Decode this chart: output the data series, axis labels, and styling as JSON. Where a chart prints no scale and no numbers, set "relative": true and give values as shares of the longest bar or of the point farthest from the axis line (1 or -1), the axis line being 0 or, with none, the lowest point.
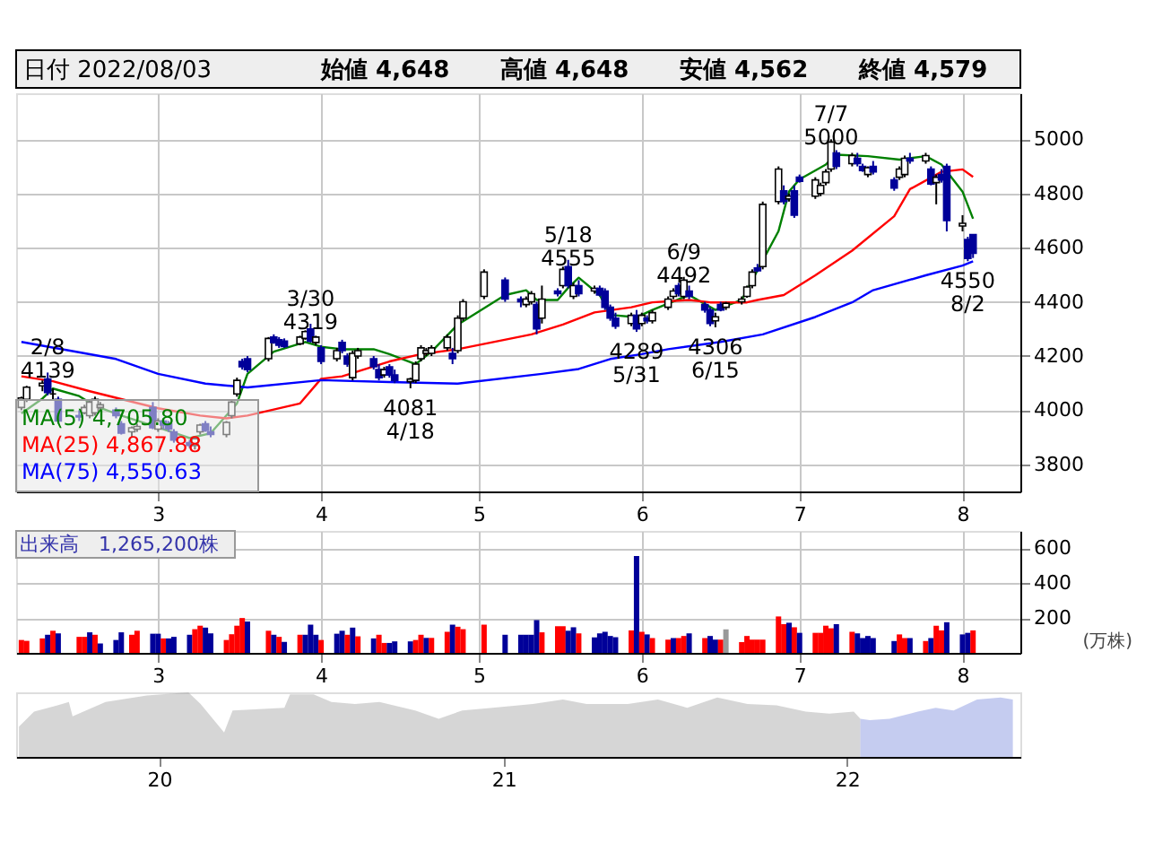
{
  "chart_data": [
    {
      "type": "candlestick",
      "title": "日付 2022/08/03",
      "x": [
        "2022-02-03",
        "2022-02-04",
        "2022-02-07",
        "2022-02-08",
        "2022-02-09",
        "2022-02-10",
        "2022-02-14",
        "2022-02-15",
        "2022-02-16",
        "2022-02-17",
        "2022-02-18",
        "2022-02-21",
        "2022-02-22",
        "2022-02-24",
        "2022-02-25",
        "2022-02-28",
        "2022-03-01",
        "2022-03-02",
        "2022-03-03",
        "2022-03-04",
        "2022-03-07",
        "2022-03-08",
        "2022-03-09",
        "2022-03-10",
        "2022-03-11",
        "2022-03-14",
        "2022-03-15",
        "2022-03-16",
        "2022-03-17",
        "2022-03-18",
        "2022-03-22",
        "2022-03-23",
        "2022-03-24",
        "2022-03-25",
        "2022-03-28",
        "2022-03-29",
        "2022-03-30",
        "2022-03-31",
        "2022-04-01",
        "2022-04-04",
        "2022-04-05",
        "2022-04-06",
        "2022-04-07",
        "2022-04-08",
        "2022-04-11",
        "2022-04-12",
        "2022-04-13",
        "2022-04-14",
        "2022-04-15",
        "2022-04-18",
        "2022-04-19",
        "2022-04-20",
        "2022-04-21",
        "2022-04-22",
        "2022-04-25",
        "2022-04-26",
        "2022-04-27",
        "2022-04-28",
        "2022-05-02",
        "2022-05-06",
        "2022-05-09",
        "2022-05-10",
        "2022-05-11",
        "2022-05-12",
        "2022-05-13",
        "2022-05-16",
        "2022-05-17",
        "2022-05-18",
        "2022-05-19",
        "2022-05-20",
        "2022-05-23",
        "2022-05-24",
        "2022-05-25",
        "2022-05-26",
        "2022-05-27",
        "2022-05-30",
        "2022-05-31",
        "2022-06-01",
        "2022-06-02",
        "2022-06-03",
        "2022-06-06",
        "2022-06-07",
        "2022-06-08",
        "2022-06-09",
        "2022-06-10",
        "2022-06-13",
        "2022-06-14",
        "2022-06-15",
        "2022-06-16",
        "2022-06-17",
        "2022-06-20",
        "2022-06-21",
        "2022-06-22",
        "2022-06-23",
        "2022-06-24",
        "2022-06-27",
        "2022-06-28",
        "2022-06-29",
        "2022-06-30",
        "2022-07-01",
        "2022-07-04",
        "2022-07-05",
        "2022-07-06",
        "2022-07-07",
        "2022-07-08",
        "2022-07-11",
        "2022-07-12",
        "2022-07-13",
        "2022-07-14",
        "2022-07-15",
        "2022-07-19",
        "2022-07-20",
        "2022-07-21",
        "2022-07-22",
        "2022-07-25",
        "2022-07-26",
        "2022-07-27",
        "2022-07-28",
        "2022-07-29",
        "2022-08-01",
        "2022-08-02",
        "2022-08-03"
      ],
      "ohlc": [
        [
          4010,
          4050,
          4000,
          4045
        ],
        [
          4040,
          4090,
          4030,
          4085
        ],
        [
          4090,
          4110,
          4070,
          4100
        ],
        [
          4115,
          4139,
          4055,
          4065
        ],
        [
          4060,
          4080,
          4040,
          4060
        ],
        [
          4040,
          4050,
          3950,
          3960
        ],
        [
          3980,
          4000,
          3960,
          3975
        ],
        [
          3990,
          4020,
          3985,
          4010
        ],
        [
          3980,
          4040,
          3970,
          4030
        ],
        [
          3990,
          4050,
          3980,
          4040
        ],
        [
          4010,
          4030,
          4000,
          4020
        ],
        [
          4000,
          4010,
          3970,
          3980
        ],
        [
          3950,
          3960,
          3910,
          3915
        ],
        [
          3920,
          3940,
          3900,
          3935
        ],
        [
          3930,
          3950,
          3920,
          3940
        ],
        [
          4010,
          4030,
          3930,
          3935
        ],
        [
          3930,
          3970,
          3920,
          3960
        ],
        [
          3960,
          3970,
          3930,
          3945
        ],
        [
          3950,
          3960,
          3920,
          3930
        ],
        [
          3920,
          3930,
          3880,
          3890
        ],
        [
          3880,
          3890,
          3860,
          3870
        ],
        [
          3870,
          3900,
          3855,
          3895
        ],
        [
          3920,
          3950,
          3910,
          3945
        ],
        [
          3950,
          3960,
          3920,
          3925
        ],
        [
          3920,
          3940,
          3900,
          3910
        ],
        [
          3910,
          3960,
          3900,
          3955
        ],
        [
          3980,
          4040,
          3970,
          4030
        ],
        [
          4060,
          4120,
          4050,
          4110
        ],
        [
          4180,
          4190,
          4150,
          4160
        ],
        [
          4190,
          4200,
          4140,
          4150
        ],
        [
          4190,
          4270,
          4180,
          4265
        ],
        [
          4270,
          4280,
          4245,
          4250
        ],
        [
          4260,
          4270,
          4230,
          4240
        ],
        [
          4255,
          4265,
          4230,
          4235
        ],
        [
          4245,
          4275,
          4240,
          4270
        ],
        [
          4265,
          4295,
          4260,
          4290
        ],
        [
          4300,
          4319,
          4250,
          4255
        ],
        [
          4250,
          4275,
          4240,
          4270
        ],
        [
          4230,
          4240,
          4170,
          4180
        ],
        [
          4190,
          4230,
          4180,
          4220
        ],
        [
          4250,
          4260,
          4210,
          4220
        ],
        [
          4200,
          4210,
          4160,
          4170
        ],
        [
          4120,
          4220,
          4110,
          4210
        ],
        [
          4200,
          4230,
          4190,
          4220
        ],
        [
          4190,
          4200,
          4150,
          4160
        ],
        [
          4150,
          4170,
          4110,
          4120
        ],
        [
          4130,
          4160,
          4120,
          4150
        ],
        [
          4160,
          4170,
          4120,
          4130
        ],
        [
          4130,
          4150,
          4100,
          4110
        ],
        [
          4105,
          4120,
          4081,
          4115
        ],
        [
          4110,
          4180,
          4100,
          4170
        ],
        [
          4190,
          4240,
          4180,
          4230
        ],
        [
          4210,
          4230,
          4200,
          4220
        ],
        [
          4210,
          4240,
          4200,
          4230
        ],
        [
          4230,
          4280,
          4220,
          4270
        ],
        [
          4210,
          4230,
          4170,
          4190
        ],
        [
          4220,
          4350,
          4210,
          4340
        ],
        [
          4340,
          4410,
          4330,
          4400
        ],
        [
          4420,
          4520,
          4410,
          4510
        ],
        [
          4480,
          4490,
          4400,
          4410
        ],
        [
          4410,
          4420,
          4380,
          4400
        ],
        [
          4390,
          4420,
          4380,
          4410
        ],
        [
          4400,
          4440,
          4390,
          4430
        ],
        [
          4390,
          4400,
          4280,
          4300
        ],
        [
          4340,
          4460,
          4320,
          4410
        ],
        [
          4440,
          4450,
          4420,
          4430
        ],
        [
          4460,
          4530,
          4450,
          4520
        ],
        [
          4530,
          4555,
          4450,
          4460
        ],
        [
          4420,
          4470,
          4410,
          4460
        ],
        [
          4460,
          4480,
          4420,
          4430
        ],
        [
          4440,
          4460,
          4430,
          4450
        ],
        [
          4450,
          4460,
          4420,
          4425
        ],
        [
          4440,
          4450,
          4370,
          4380
        ],
        [
          4380,
          4390,
          4330,
          4340
        ],
        [
          4340,
          4360,
          4300,
          4310
        ],
        [
          4320,
          4360,
          4310,
          4350
        ],
        [
          4350,
          4370,
          4289,
          4300
        ],
        [
          4320,
          4360,
          4310,
          4350
        ],
        [
          4340,
          4350,
          4320,
          4330
        ],
        [
          4330,
          4370,
          4320,
          4360
        ],
        [
          4380,
          4420,
          4370,
          4410
        ],
        [
          4420,
          4450,
          4410,
          4440
        ],
        [
          4460,
          4470,
          4420,
          4430
        ],
        [
          4420,
          4492,
          4410,
          4480
        ],
        [
          4440,
          4460,
          4410,
          4420
        ],
        [
          4390,
          4400,
          4360,
          4370
        ],
        [
          4370,
          4380,
          4310,
          4320
        ],
        [
          4330,
          4360,
          4306,
          4345
        ],
        [
          4390,
          4400,
          4365,
          4370
        ],
        [
          4380,
          4400,
          4370,
          4395
        ],
        [
          4400,
          4420,
          4390,
          4410
        ],
        [
          4420,
          4460,
          4415,
          4455
        ],
        [
          4460,
          4520,
          4450,
          4510
        ],
        [
          4525,
          4540,
          4510,
          4515
        ],
        [
          4530,
          4770,
          4520,
          4760
        ],
        [
          4770,
          4900,
          4760,
          4890
        ],
        [
          4810,
          4830,
          4760,
          4770
        ],
        [
          4780,
          4800,
          4770,
          4790
        ],
        [
          4810,
          4830,
          4710,
          4720
        ],
        [
          4860,
          4870,
          4840,
          4845
        ],
        [
          4790,
          4860,
          4780,
          4850
        ],
        [
          4800,
          4840,
          4790,
          4830
        ],
        [
          4840,
          4890,
          4830,
          4880
        ],
        [
          4890,
          5000,
          4880,
          4990
        ],
        [
          4950,
          4960,
          4890,
          4900
        ],
        [
          4910,
          4950,
          4900,
          4940
        ],
        [
          4930,
          4950,
          4900,
          4910
        ],
        [
          4900,
          4910,
          4880,
          4885
        ],
        [
          4870,
          4900,
          4860,
          4895
        ],
        [
          4900,
          4920,
          4870,
          4880
        ],
        [
          4850,
          4860,
          4810,
          4820
        ],
        [
          4860,
          4900,
          4850,
          4890
        ],
        [
          4870,
          4940,
          4860,
          4930
        ],
        [
          4930,
          4950,
          4910,
          4920
        ],
        [
          4920,
          4950,
          4910,
          4940
        ],
        [
          4890,
          4900,
          4830,
          4835
        ],
        [
          4840,
          4870,
          4760,
          4860
        ],
        [
          4870,
          4890,
          4840,
          4850
        ],
        [
          4900,
          4910,
          4660,
          4700
        ],
        [
          4680,
          4720,
          4660,
          4690
        ],
        [
          4630,
          4640,
          4550,
          4560
        ],
        [
          4648,
          4648,
          4562,
          4579
        ]
      ],
      "series": [
        {
          "name": "MA(5) 4,705.80",
          "type": "line",
          "color": "#008000",
          "x": [
            "2022-02-03",
            "2022-02-07",
            "2022-02-09",
            "2022-02-14",
            "2022-02-17",
            "2022-02-22",
            "2022-02-28",
            "2022-03-07",
            "2022-03-11",
            "2022-03-16",
            "2022-03-18",
            "2022-03-23",
            "2022-03-29",
            "2022-04-01",
            "2022-04-05",
            "2022-04-11",
            "2022-04-14",
            "2022-04-19",
            "2022-04-22",
            "2022-04-27",
            "2022-05-06",
            "2022-05-10",
            "2022-05-12",
            "2022-05-16",
            "2022-05-18",
            "2022-05-20",
            "2022-05-24",
            "2022-05-26",
            "2022-05-31",
            "2022-06-03",
            "2022-06-10",
            "2022-06-15",
            "2022-06-20",
            "2022-06-22",
            "2022-06-27",
            "2022-06-29",
            "2022-07-01",
            "2022-07-06",
            "2022-07-08",
            "2022-07-14",
            "2022-07-20",
            "2022-07-25",
            "2022-07-28",
            "2022-08-01",
            "2022-08-03"
          ],
          "values": [
            3988,
            4043,
            4080,
            4052,
            4016,
            3980,
            3943,
            3897,
            3915,
            4025,
            4134,
            4216,
            4252,
            4234,
            4225,
            4225,
            4207,
            4170,
            4216,
            4316,
            4425,
            4443,
            4407,
            4407,
            4452,
            4489,
            4425,
            4352,
            4343,
            4370,
            4425,
            4370,
            4407,
            4480,
            4661,
            4807,
            4852,
            4907,
            4943,
            4938,
            4925,
            4938,
            4907,
            4807,
            4707
          ]
        },
        {
          "name": "MA(25) 4,867.88",
          "type": "line",
          "color": "#ff0000",
          "x": [
            "2022-02-03",
            "2022-02-09",
            "2022-02-16",
            "2022-03-01",
            "2022-03-09",
            "2022-03-14",
            "2022-03-18",
            "2022-03-28",
            "2022-04-01",
            "2022-04-05",
            "2022-04-14",
            "2022-04-20",
            "2022-04-27",
            "2022-05-11",
            "2022-05-17",
            "2022-05-23",
            "2022-05-30",
            "2022-06-03",
            "2022-06-10",
            "2022-06-14",
            "2022-06-21",
            "2022-06-23",
            "2022-06-28",
            "2022-07-04",
            "2022-07-11",
            "2022-07-19",
            "2022-07-22",
            "2022-07-28",
            "2022-08-01",
            "2022-08-03"
          ],
          "values": [
            4125,
            4107,
            4070,
            4007,
            3980,
            3970,
            3980,
            4025,
            4116,
            4125,
            4180,
            4207,
            4225,
            4280,
            4316,
            4361,
            4380,
            4398,
            4407,
            4398,
            4398,
            4407,
            4425,
            4498,
            4589,
            4716,
            4816,
            4880,
            4889,
            4861
          ]
        },
        {
          "name": "MA(75) 4,550.63",
          "type": "line",
          "color": "#0000ff",
          "x": [
            "2022-02-03",
            "2022-02-21",
            "2022-03-01",
            "2022-03-10",
            "2022-03-18",
            "2022-04-01",
            "2022-04-14",
            "2022-04-27",
            "2022-05-13",
            "2022-05-20",
            "2022-05-26",
            "2022-06-01",
            "2022-06-06",
            "2022-06-16",
            "2022-06-24",
            "2022-07-04",
            "2022-07-11",
            "2022-07-15",
            "2022-07-25",
            "2022-08-01",
            "2022-08-03"
          ],
          "values": [
            4252,
            4189,
            4134,
            4098,
            4084,
            4111,
            4104,
            4098,
            4134,
            4152,
            4189,
            4207,
            4225,
            4252,
            4280,
            4344,
            4398,
            4443,
            4498,
            4534,
            4550
          ]
        }
      ],
      "xlim": [
        "2022-02-02",
        "2022-08-12"
      ],
      "xticks": [
        {
          "value": "2022-03-01",
          "label": "3"
        },
        {
          "value": "2022-04-01",
          "label": "4"
        },
        {
          "value": "2022-05-01",
          "label": "5"
        },
        {
          "value": "2022-06-01",
          "label": "6"
        },
        {
          "value": "2022-07-01",
          "label": "7"
        },
        {
          "value": "2022-08-01",
          "label": "8"
        }
      ],
      "ylim": [
        3700,
        5170
      ],
      "yticks": [
        3800,
        4000,
        4200,
        4400,
        4600,
        4800,
        5000
      ],
      "grid": true,
      "legend": "bottom left",
      "annotations": [
        "始値 4,648",
        "高値 4,648",
        "安値 4,562",
        "終値 4,579",
        {
          "text": "2/8\n4139",
          "x": "2022-02-08",
          "y": 4139
        },
        {
          "text": "3/30\n4319",
          "x": "2022-03-30",
          "y": 4319
        },
        {
          "text": "4081\n4/18",
          "x": "2022-04-18",
          "y": 4081
        },
        {
          "text": "5/18\n4555",
          "x": "2022-05-18",
          "y": 4555
        },
        {
          "text": "4289\n5/31",
          "x": "2022-05-31",
          "y": 4289
        },
        {
          "text": "6/9\n4492",
          "x": "2022-06-09",
          "y": 4492
        },
        {
          "text": "4306\n6/15",
          "x": "2022-06-15",
          "y": 4306
        },
        {
          "text": "7/7\n5000",
          "x": "2022-07-07",
          "y": 5000
        },
        {
          "text": "4550\n8/2",
          "x": "2022-08-02",
          "y": 4550
        }
      ]
    },
    {
      "type": "bar",
      "ylabel": "(万株)",
      "x": [
        "2022-02-03",
        "2022-02-04",
        "2022-02-07",
        "2022-02-08",
        "2022-02-09",
        "2022-02-10",
        "2022-02-14",
        "2022-02-15",
        "2022-02-16",
        "2022-02-17",
        "2022-02-18",
        "2022-02-21",
        "2022-02-22",
        "2022-02-24",
        "2022-02-25",
        "2022-02-28",
        "2022-03-01",
        "2022-03-02",
        "2022-03-03",
        "2022-03-04",
        "2022-03-07",
        "2022-03-08",
        "2022-03-09",
        "2022-03-10",
        "2022-03-11",
        "2022-03-14",
        "2022-03-15",
        "2022-03-16",
        "2022-03-17",
        "2022-03-18",
        "2022-03-22",
        "2022-03-23",
        "2022-03-24",
        "2022-03-25",
        "2022-03-28",
        "2022-03-29",
        "2022-03-30",
        "2022-03-31",
        "2022-04-01",
        "2022-04-04",
        "2022-04-05",
        "2022-04-06",
        "2022-04-07",
        "2022-04-08",
        "2022-04-11",
        "2022-04-12",
        "2022-04-13",
        "2022-04-14",
        "2022-04-15",
        "2022-04-18",
        "2022-04-19",
        "2022-04-20",
        "2022-04-21",
        "2022-04-22",
        "2022-04-25",
        "2022-04-26",
        "2022-04-27",
        "2022-04-28",
        "2022-05-02",
        "2022-05-06",
        "2022-05-09",
        "2022-05-10",
        "2022-05-11",
        "2022-05-12",
        "2022-05-13",
        "2022-05-16",
        "2022-05-17",
        "2022-05-18",
        "2022-05-19",
        "2022-05-20",
        "2022-05-23",
        "2022-05-24",
        "2022-05-25",
        "2022-05-26",
        "2022-05-27",
        "2022-05-30",
        "2022-05-31",
        "2022-06-01",
        "2022-06-02",
        "2022-06-03",
        "2022-06-06",
        "2022-06-07",
        "2022-06-08",
        "2022-06-09",
        "2022-06-10",
        "2022-06-13",
        "2022-06-14",
        "2022-06-15",
        "2022-06-16",
        "2022-06-17",
        "2022-06-20",
        "2022-06-21",
        "2022-06-22",
        "2022-06-23",
        "2022-06-24",
        "2022-06-27",
        "2022-06-28",
        "2022-06-29",
        "2022-06-30",
        "2022-07-01",
        "2022-07-04",
        "2022-07-05",
        "2022-07-06",
        "2022-07-07",
        "2022-07-08",
        "2022-07-11",
        "2022-07-12",
        "2022-07-13",
        "2022-07-14",
        "2022-07-15",
        "2022-07-19",
        "2022-07-20",
        "2022-07-21",
        "2022-07-22",
        "2022-07-25",
        "2022-07-26",
        "2022-07-27",
        "2022-07-28",
        "2022-07-29",
        "2022-08-01",
        "2022-08-02",
        "2022-08-03"
      ],
      "values": [
        74,
        69,
        83,
        104,
        127,
        112,
        92,
        92,
        118,
        104,
        54,
        74,
        118,
        104,
        127,
        110,
        110,
        83,
        83,
        92,
        104,
        136,
        156,
        145,
        112,
        74,
        107,
        156,
        200,
        180,
        127,
        104,
        92,
        63,
        104,
        104,
        162,
        104,
        74,
        110,
        127,
        104,
        145,
        95,
        83,
        104,
        57,
        57,
        66,
        66,
        74,
        104,
        86,
        86,
        121,
        162,
        150,
        136,
        162,
        104,
        104,
        104,
        104,
        188,
        118,
        153,
        153,
        127,
        147,
        112,
        89,
        112,
        121,
        97,
        90,
        129,
        556,
        121,
        106,
        85,
        76,
        85,
        85,
        97,
        112,
        85,
        97,
        76,
        76,
        135,
        62,
        97,
        76,
        76,
        76,
        209,
        165,
        173,
        147,
        115,
        115,
        115,
        156,
        141,
        165,
        121,
        112,
        85,
        97,
        85,
        68,
        106,
        85,
        85,
        68,
        85,
        156,
        129,
        176,
        106,
        115,
        129
      ],
      "colors": [
        "#ff0000",
        "#ff0000",
        "#ff0000",
        "#000099",
        "#ff0000",
        "#000099",
        "#ff0000",
        "#ff0000",
        "#000099",
        "#ff0000",
        "#000099",
        "#000099",
        "#000099",
        "#ff0000",
        "#ff0000",
        "#000099",
        "#000099",
        "#ff0000",
        "#000099",
        "#000099",
        "#000099",
        "#ff0000",
        "#ff0000",
        "#000099",
        "#000099",
        "#ff0000",
        "#ff0000",
        "#ff0000",
        "#ff0000",
        "#000099",
        "#ff0000",
        "#000099",
        "#ff0000",
        "#000099",
        "#ff0000",
        "#000099",
        "#000099",
        "#000099",
        "#ff0000",
        "#000099",
        "#000099",
        "#ff0000",
        "#000099",
        "#ff0000",
        "#000099",
        "#ff0000",
        "#ff0000",
        "#000099",
        "#000099",
        "#000099",
        "#ff0000",
        "#ff0000",
        "#000099",
        "#ff0000",
        "#ff0000",
        "#000099",
        "#ff0000",
        "#ff0000",
        "#ff0000",
        "#000099",
        "#000099",
        "#000099",
        "#000099",
        "#000099",
        "#ff0000",
        "#ff0000",
        "#ff0000",
        "#000099",
        "#000099",
        "#ff0000",
        "#000099",
        "#000099",
        "#000099",
        "#000099",
        "#000099",
        "#ff0000",
        "#000099",
        "#ff0000",
        "#000099",
        "#ff0000",
        "#ff0000",
        "#000099",
        "#ff0000",
        "#ff0000",
        "#000099",
        "#ff0000",
        "#000099",
        "#000099",
        "#ff0000",
        "#999999",
        "#ff0000",
        "#ff0000",
        "#ff0000",
        "#ff0000",
        "#ff0000",
        "#ff0000",
        "#ff0000",
        "#000099",
        "#ff0000",
        "#000099",
        "#ff0000",
        "#ff0000",
        "#ff0000",
        "#ff0000",
        "#000099",
        "#ff0000",
        "#000099",
        "#000099",
        "#000099",
        "#000099",
        "#000099",
        "#ff0000",
        "#ff0000",
        "#000099",
        "#ff0000",
        "#000099",
        "#ff0000",
        "#ff0000",
        "#000099",
        "#000099",
        "#000099",
        "#ff0000"
      ],
      "xlim": [
        "2022-02-02",
        "2022-08-12"
      ],
      "xticks": [
        {
          "value": "2022-03-01",
          "label": "3"
        },
        {
          "value": "2022-04-01",
          "label": "4"
        },
        {
          "value": "2022-05-01",
          "label": "5"
        },
        {
          "value": "2022-06-01",
          "label": "6"
        },
        {
          "value": "2022-07-01",
          "label": "7"
        },
        {
          "value": "2022-08-01",
          "label": "8"
        }
      ],
      "ylim": [
        0,
        700
      ],
      "yticks": [
        200,
        400,
        600
      ],
      "grid": true,
      "annotations": [
        "出来高　1,265,200株"
      ]
    },
    {
      "type": "area",
      "relative": true,
      "series": [
        {
          "color": "#999999",
          "x": [
            "2019-08-05",
            "2019-08-21",
            "2019-09-15",
            "2019-09-27",
            "2019-10-01",
            "2019-11-05",
            "2019-12-19",
            "2020-01-04",
            "2020-02-01",
            "2020-02-14",
            "2020-03-10",
            "2020-03-19",
            "2020-05-13",
            "2020-05-19",
            "2020-06-13",
            "2020-07-02",
            "2020-07-27",
            "2020-08-22",
            "2020-09-29",
            "2020-10-24",
            "2020-11-18",
            "2020-12-20",
            "2021-02-01",
            "2021-03-05",
            "2021-03-30",
            "2021-05-13",
            "2021-06-14",
            "2021-07-15",
            "2021-08-16",
            "2021-09-17",
            "2021-10-18",
            "2021-11-18",
            "2021-12-13",
            "2022-01-08",
            "2022-01-15"
          ],
          "values": [
            0.47,
            0.7,
            0.8,
            0.85,
            0.63,
            0.85,
            0.95,
            0.97,
            1.0,
            0.82,
            0.38,
            0.72,
            0.76,
            0.97,
            0.97,
            0.85,
            0.82,
            0.85,
            0.72,
            0.59,
            0.72,
            0.76,
            0.82,
            0.89,
            0.82,
            0.82,
            0.89,
            0.76,
            0.92,
            0.82,
            0.8,
            0.7,
            0.67,
            0.7,
            0.59
          ]
        },
        {
          "color": "#6f7fd9",
          "x": [
            "2022-01-15",
            "2022-01-25",
            "2022-02-15",
            "2022-03-17",
            "2022-04-05",
            "2022-04-24",
            "2022-05-19",
            "2022-06-13",
            "2022-06-26"
          ],
          "values": [
            0.59,
            0.57,
            0.59,
            0.7,
            0.76,
            0.72,
            0.89,
            0.92,
            0.89
          ]
        }
      ],
      "xlim": [
        "2019-08-02",
        "2022-07-04"
      ],
      "xticks": [
        {
          "value": "2020-01-01",
          "label": "20"
        },
        {
          "value": "2021-01-01",
          "label": "21"
        },
        {
          "value": "2022-01-01",
          "label": "22"
        }
      ]
    }
  ]
}
